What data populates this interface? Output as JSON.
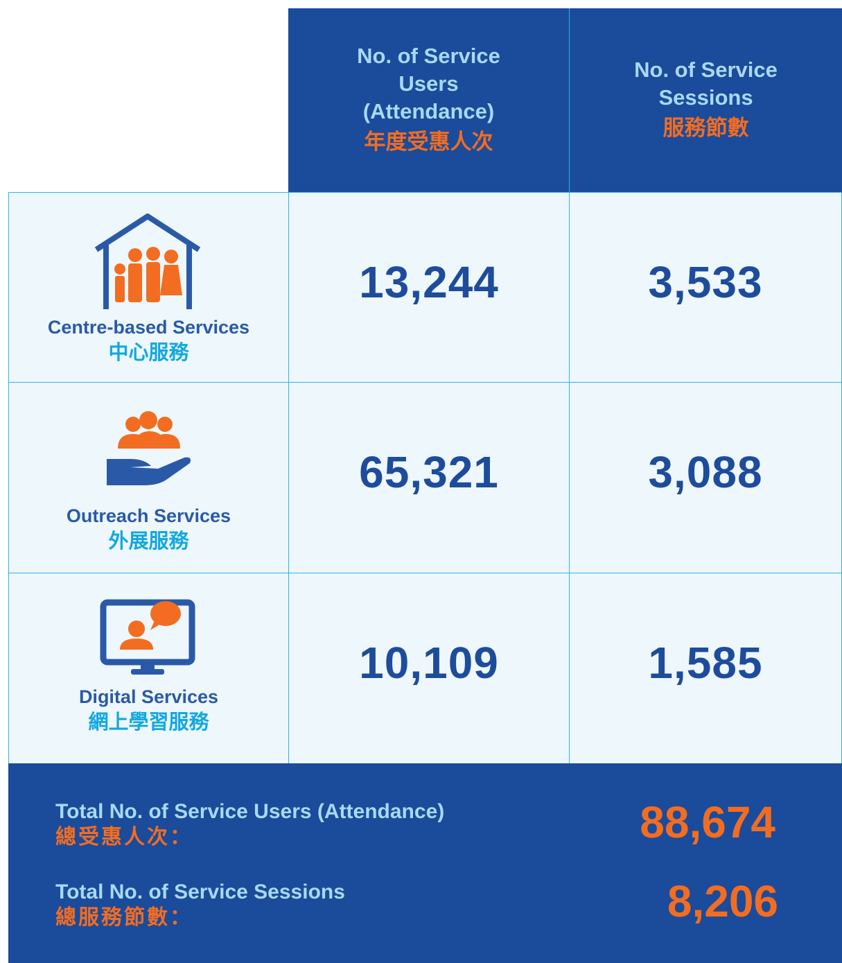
{
  "header": {
    "columns": [
      {
        "title": "No. of Service Users (Attendance)",
        "title_zh": "年度受惠人次"
      },
      {
        "title": "No. of Service Sessions",
        "title_zh": "服務節數"
      }
    ]
  },
  "table": {
    "rows": [
      {
        "label": "Centre-based Services",
        "label_zh": "中心服務",
        "users": "13,244",
        "sessions": "3,533"
      },
      {
        "label": "Outreach Services",
        "label_zh": "外展服務",
        "users": "65,321",
        "sessions": "3,088"
      },
      {
        "label": "Digital Services",
        "label_zh": "網上學習服務",
        "users": "10,109",
        "sessions": "1,585"
      }
    ]
  },
  "totals": [
    {
      "label": "Total No. of Service Users (Attendance)",
      "label_zh": "總受惠人次：",
      "value": "88,674"
    },
    {
      "label": "Total No. of Service Sessions",
      "label_zh": "總服務節數：",
      "value": "8,206"
    }
  ]
}
